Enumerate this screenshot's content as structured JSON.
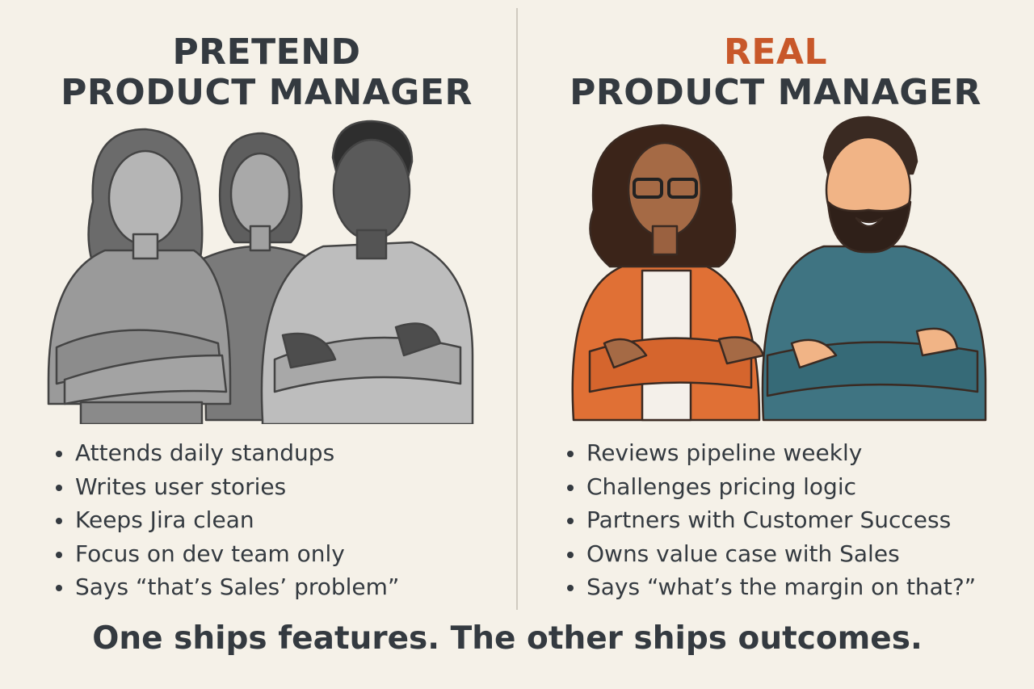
{
  "left": {
    "title_line1": "PRETEND",
    "title_line2": "PRODUCT MANAGER",
    "bullets": [
      "Attends daily standups",
      "Writes user stories",
      "Keeps Jira clean",
      "Focus on dev team only",
      "Says “that’s Sales’ problem”"
    ]
  },
  "right": {
    "title_line1": "REAL",
    "title_line2": "PRODUCT MANAGER",
    "bullets": [
      "Reviews pipeline weekly",
      "Challenges pricing logic",
      "Partners with Customer Success",
      "Owns value case with Sales",
      "Says “what’s the margin on that?”"
    ]
  },
  "footer": "One ships features. The other ships outcomes.",
  "colors": {
    "background": "#f5f1e8",
    "text": "#343a40",
    "accent": "#c8582a",
    "orange_blazer": "#e07035",
    "teal_sweater": "#3f7482"
  }
}
